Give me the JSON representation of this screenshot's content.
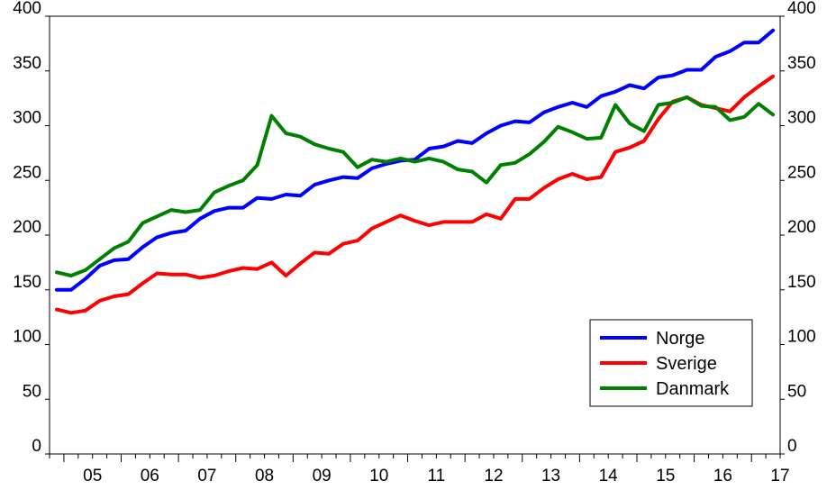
{
  "chart_data": {
    "type": "line",
    "title": "",
    "xlabel": "",
    "ylabel": "",
    "ylim": [
      0,
      400
    ],
    "y_ticks": [
      "0",
      "50",
      "100",
      "150",
      "200",
      "250",
      "300",
      "350",
      "400"
    ],
    "x_ticks": [
      "05",
      "06",
      "07",
      "08",
      "09",
      "10",
      "11",
      "12",
      "13",
      "14",
      "15",
      "16",
      "17"
    ],
    "x_start": 2004.875,
    "x_step": 0.25,
    "grid": false,
    "dual_y_axis": true,
    "legend_position": "bottom-right",
    "series": [
      {
        "name": "Norge",
        "color": "#0000ff",
        "values": [
          150,
          150,
          160,
          172,
          177,
          178,
          189,
          198,
          202,
          204,
          215,
          222,
          225,
          225,
          234,
          233,
          237,
          236,
          246,
          250,
          253,
          252,
          261,
          265,
          268,
          269,
          279,
          281,
          286,
          284,
          293,
          300,
          304,
          303,
          312,
          317,
          321,
          317,
          327,
          331,
          337,
          334,
          344,
          346,
          351,
          351,
          363,
          368,
          376,
          376,
          387
        ]
      },
      {
        "name": "Sverige",
        "color": "#ff0000",
        "values": [
          132,
          129,
          131,
          140,
          144,
          146,
          156,
          165,
          164,
          164,
          161,
          163,
          167,
          170,
          169,
          175,
          163,
          174,
          184,
          183,
          192,
          195,
          206,
          212,
          218,
          213,
          209,
          212,
          212,
          212,
          219,
          215,
          233,
          233,
          243,
          251,
          256,
          251,
          253,
          276,
          280,
          286,
          306,
          322,
          326,
          319,
          316,
          313,
          326,
          336,
          345
        ]
      },
      {
        "name": "Danmark",
        "color": "#008000",
        "values": [
          166,
          163,
          168,
          178,
          188,
          194,
          211,
          217,
          223,
          221,
          223,
          239,
          245,
          250,
          264,
          309,
          293,
          290,
          283,
          279,
          276,
          262,
          269,
          267,
          270,
          267,
          270,
          267,
          260,
          258,
          248,
          264,
          266,
          274,
          285,
          299,
          294,
          288,
          289,
          319,
          302,
          295,
          319,
          321,
          326,
          318,
          317,
          305,
          308,
          320,
          310
        ]
      }
    ]
  }
}
